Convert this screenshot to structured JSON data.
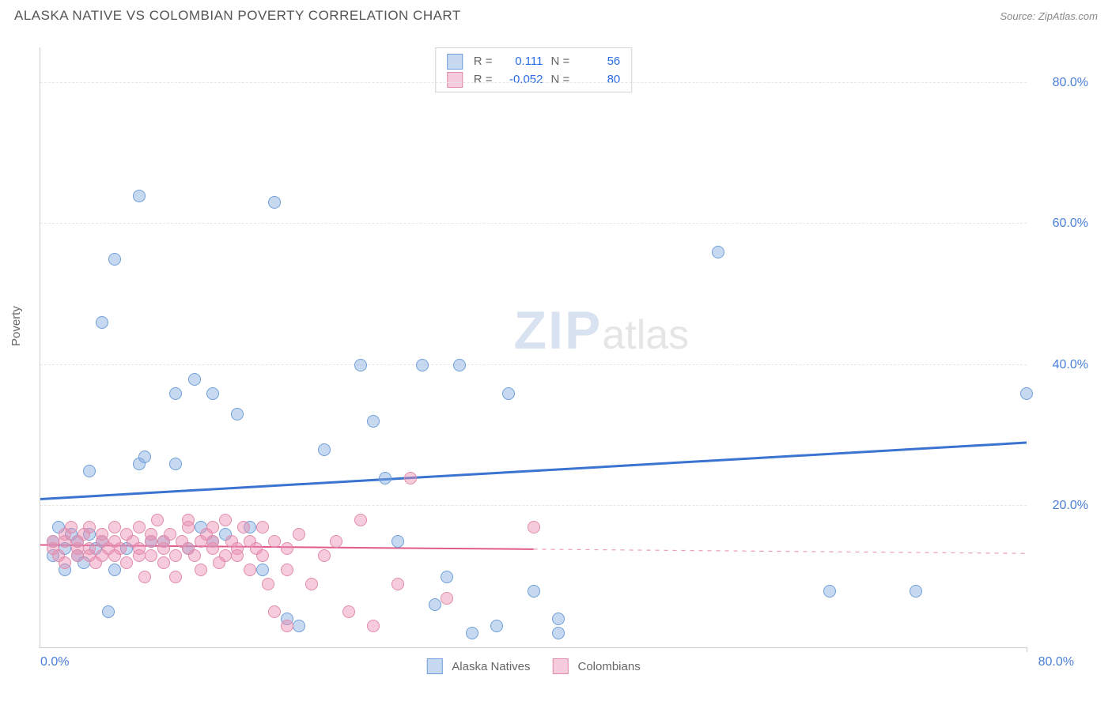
{
  "header": {
    "title": "ALASKA NATIVE VS COLOMBIAN POVERTY CORRELATION CHART",
    "source_label": "Source: ",
    "source_name": "ZipAtlas.com"
  },
  "ylabel": "Poverty",
  "chart": {
    "type": "scatter",
    "xlim": [
      0,
      80
    ],
    "ylim": [
      0,
      85
    ],
    "ytick_values": [
      20,
      40,
      60,
      80
    ],
    "ytick_labels": [
      "20.0%",
      "40.0%",
      "60.0%",
      "80.0%"
    ],
    "xtick_left": "0.0%",
    "xtick_right": "80.0%",
    "grid_color": "#e6e6e6",
    "axis_color": "#cccccc",
    "tick_color": "#4a7fd8",
    "dot_radius": 8,
    "watermark_zip": "ZIP",
    "watermark_atlas": "atlas"
  },
  "series": [
    {
      "key": "alaska",
      "label": "Alaska Natives",
      "fill": "rgba(130,170,225,0.45)",
      "stroke": "#6f9fd8",
      "line_color": "#3a74d0",
      "line_width": 3,
      "r_label": "R =",
      "r_value": "0.111",
      "n_label": "N =",
      "n_value": "56",
      "trend": {
        "x1": 0,
        "y1": 21,
        "x2": 80,
        "y2": 29,
        "dash_after_x": 80
      },
      "points": [
        [
          1,
          15
        ],
        [
          1,
          13
        ],
        [
          1.5,
          17
        ],
        [
          2,
          14
        ],
        [
          2,
          11
        ],
        [
          2.5,
          16
        ],
        [
          3,
          13
        ],
        [
          3,
          15
        ],
        [
          3.5,
          12
        ],
        [
          4,
          25
        ],
        [
          4,
          16
        ],
        [
          4.5,
          14
        ],
        [
          5,
          46
        ],
        [
          5,
          15
        ],
        [
          5.5,
          5
        ],
        [
          6,
          55
        ],
        [
          6,
          11
        ],
        [
          7,
          14
        ],
        [
          8,
          64
        ],
        [
          8,
          26
        ],
        [
          8.5,
          27
        ],
        [
          9,
          15
        ],
        [
          10,
          15
        ],
        [
          11,
          36
        ],
        [
          11,
          26
        ],
        [
          12,
          14
        ],
        [
          12.5,
          38
        ],
        [
          13,
          17
        ],
        [
          14,
          36
        ],
        [
          14,
          15
        ],
        [
          15,
          16
        ],
        [
          16,
          33
        ],
        [
          17,
          17
        ],
        [
          18,
          11
        ],
        [
          19,
          63
        ],
        [
          20,
          4
        ],
        [
          21,
          3
        ],
        [
          23,
          28
        ],
        [
          26,
          40
        ],
        [
          27,
          32
        ],
        [
          28,
          24
        ],
        [
          29,
          15
        ],
        [
          31,
          40
        ],
        [
          32,
          6
        ],
        [
          33,
          10
        ],
        [
          34,
          40
        ],
        [
          35,
          2
        ],
        [
          37,
          3
        ],
        [
          38,
          36
        ],
        [
          40,
          8
        ],
        [
          42,
          4
        ],
        [
          42,
          2
        ],
        [
          55,
          56
        ],
        [
          64,
          8
        ],
        [
          71,
          8
        ],
        [
          80,
          36
        ]
      ]
    },
    {
      "key": "colombian",
      "label": "Colombians",
      "fill": "rgba(235,140,175,0.45)",
      "stroke": "#e08cac",
      "line_color": "#e05a8a",
      "line_width": 2,
      "r_label": "R =",
      "r_value": "-0.052",
      "n_label": "N =",
      "n_value": "80",
      "trend": {
        "x1": 0,
        "y1": 14.5,
        "x2": 80,
        "y2": 13.3,
        "dash_after_x": 40
      },
      "points": [
        [
          1,
          15
        ],
        [
          1,
          14
        ],
        [
          1.5,
          13
        ],
        [
          2,
          16
        ],
        [
          2,
          15
        ],
        [
          2,
          12
        ],
        [
          2.5,
          17
        ],
        [
          3,
          14
        ],
        [
          3,
          13
        ],
        [
          3,
          15
        ],
        [
          3.5,
          16
        ],
        [
          4,
          13
        ],
        [
          4,
          17
        ],
        [
          4,
          14
        ],
        [
          4.5,
          12
        ],
        [
          5,
          15
        ],
        [
          5,
          16
        ],
        [
          5,
          13
        ],
        [
          5.5,
          14
        ],
        [
          6,
          17
        ],
        [
          6,
          13
        ],
        [
          6,
          15
        ],
        [
          6.5,
          14
        ],
        [
          7,
          16
        ],
        [
          7,
          12
        ],
        [
          7.5,
          15
        ],
        [
          8,
          13
        ],
        [
          8,
          17
        ],
        [
          8,
          14
        ],
        [
          8.5,
          10
        ],
        [
          9,
          15
        ],
        [
          9,
          16
        ],
        [
          9,
          13
        ],
        [
          9.5,
          18
        ],
        [
          10,
          14
        ],
        [
          10,
          15
        ],
        [
          10,
          12
        ],
        [
          10.5,
          16
        ],
        [
          11,
          13
        ],
        [
          11,
          10
        ],
        [
          11.5,
          15
        ],
        [
          12,
          17
        ],
        [
          12,
          14
        ],
        [
          12,
          18
        ],
        [
          12.5,
          13
        ],
        [
          13,
          15
        ],
        [
          13,
          11
        ],
        [
          13.5,
          16
        ],
        [
          14,
          17
        ],
        [
          14,
          14
        ],
        [
          14,
          15
        ],
        [
          14.5,
          12
        ],
        [
          15,
          18
        ],
        [
          15,
          13
        ],
        [
          15.5,
          15
        ],
        [
          16,
          14
        ],
        [
          16,
          13
        ],
        [
          16.5,
          17
        ],
        [
          17,
          11
        ],
        [
          17,
          15
        ],
        [
          17.5,
          14
        ],
        [
          18,
          17
        ],
        [
          18,
          13
        ],
        [
          18.5,
          9
        ],
        [
          19,
          15
        ],
        [
          19,
          5
        ],
        [
          20,
          14
        ],
        [
          20,
          11
        ],
        [
          20,
          3
        ],
        [
          21,
          16
        ],
        [
          22,
          9
        ],
        [
          23,
          13
        ],
        [
          24,
          15
        ],
        [
          25,
          5
        ],
        [
          26,
          18
        ],
        [
          27,
          3
        ],
        [
          29,
          9
        ],
        [
          30,
          24
        ],
        [
          33,
          7
        ],
        [
          40,
          17
        ]
      ]
    }
  ]
}
